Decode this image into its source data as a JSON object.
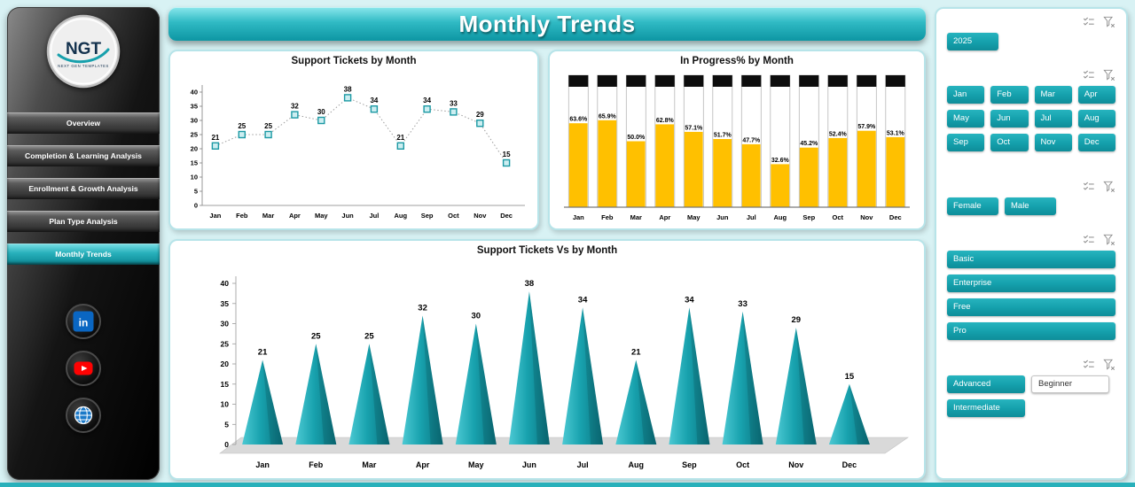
{
  "page": {
    "title": "Monthly Trends"
  },
  "colors": {
    "teal": "#14a3ae",
    "teal_light": "#7fe3e8",
    "teal_dark": "#0d8a96",
    "amber": "#FFC000",
    "cap_black": "#0d0d0d",
    "marker_fill": "#cdeef1",
    "marker_stroke": "#1b99a4",
    "floor_gray": "#d9d9d9",
    "linkedin_blue": "#0a66c2",
    "youtube_red": "#ff0202",
    "globe_blue": "#1b79c8"
  },
  "sidebar": {
    "logo": {
      "text": "NGT",
      "subtext": "NEXT GEN TEMPLATES"
    },
    "items": [
      {
        "label": "Overview",
        "active": false
      },
      {
        "label": "Completion & Learning Analysis",
        "active": false
      },
      {
        "label": "Enrollment & Growth Analysis",
        "active": false
      },
      {
        "label": "Plan Type Analysis",
        "active": false
      },
      {
        "label": "Monthly Trends",
        "active": true
      }
    ],
    "social": [
      {
        "name": "linkedin"
      },
      {
        "name": "youtube"
      },
      {
        "name": "website"
      }
    ]
  },
  "chart_data": [
    {
      "type": "line",
      "title": "Support Tickets by Month",
      "categories": [
        "Jan",
        "Feb",
        "Mar",
        "Apr",
        "May",
        "Jun",
        "Jul",
        "Aug",
        "Sep",
        "Oct",
        "Nov",
        "Dec"
      ],
      "values": [
        21,
        25,
        25,
        32,
        30,
        38,
        34,
        21,
        34,
        33,
        29,
        15
      ],
      "ylim": [
        0,
        40
      ],
      "ytick_step": 5,
      "grid": false,
      "legend": "none",
      "line_style": "dotted",
      "marker": "square"
    },
    {
      "type": "bar",
      "bar_style": "battery",
      "title": "In Progress% by Month",
      "categories": [
        "Jan",
        "Feb",
        "Mar",
        "Apr",
        "May",
        "Jun",
        "Jul",
        "Aug",
        "Sep",
        "Oct",
        "Nov",
        "Dec"
      ],
      "values": [
        63.6,
        65.9,
        50.0,
        62.8,
        57.1,
        51.7,
        47.7,
        32.6,
        45.2,
        52.4,
        57.9,
        53.1
      ],
      "value_suffix": "%",
      "ylim": [
        0,
        100
      ],
      "grid": false,
      "legend": "none"
    },
    {
      "type": "bar",
      "bar_style": "cone",
      "title": "Support Tickets Vs  by Month",
      "categories": [
        "Jan",
        "Feb",
        "Mar",
        "Apr",
        "May",
        "Jun",
        "Jul",
        "Aug",
        "Sep",
        "Oct",
        "Nov",
        "Dec"
      ],
      "values": [
        21,
        25,
        25,
        32,
        30,
        38,
        34,
        21,
        34,
        33,
        29,
        15
      ],
      "ylim": [
        0,
        40
      ],
      "ytick_step": 5,
      "grid": false,
      "legend": "none"
    }
  ],
  "slicers": [
    {
      "id": "year",
      "options": [
        {
          "label": "2025",
          "selected": true
        }
      ]
    },
    {
      "id": "month",
      "options": [
        {
          "label": "Jan",
          "selected": true
        },
        {
          "label": "Feb",
          "selected": true
        },
        {
          "label": "Mar",
          "selected": true
        },
        {
          "label": "Apr",
          "selected": true
        },
        {
          "label": "May",
          "selected": true
        },
        {
          "label": "Jun",
          "selected": true
        },
        {
          "label": "Jul",
          "selected": true
        },
        {
          "label": "Aug",
          "selected": true
        },
        {
          "label": "Sep",
          "selected": true
        },
        {
          "label": "Oct",
          "selected": true
        },
        {
          "label": "Nov",
          "selected": true
        },
        {
          "label": "Dec",
          "selected": true
        }
      ]
    },
    {
      "id": "gender",
      "options": [
        {
          "label": "Female",
          "selected": true
        },
        {
          "label": "Male",
          "selected": true
        }
      ]
    },
    {
      "id": "plan",
      "options": [
        {
          "label": "Basic",
          "selected": true
        },
        {
          "label": "Enterprise",
          "selected": true
        },
        {
          "label": "Free",
          "selected": true
        },
        {
          "label": "Pro",
          "selected": true
        }
      ]
    },
    {
      "id": "level",
      "options": [
        {
          "label": "Advanced",
          "selected": true
        },
        {
          "label": "Beginner",
          "selected": false
        },
        {
          "label": "Intermediate",
          "selected": true
        }
      ]
    }
  ]
}
